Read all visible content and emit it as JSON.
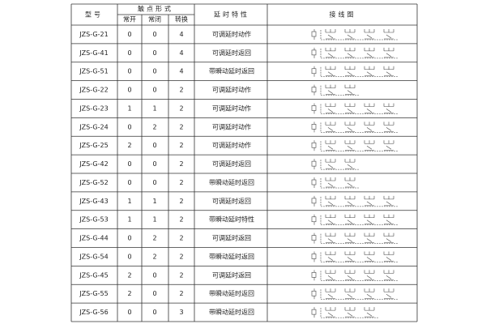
{
  "table": {
    "header": {
      "model": "型号",
      "contact": "触点形式",
      "no": "常开",
      "nc": "常闭",
      "co": "转换",
      "delay": "延时特性",
      "wiring": "接线图"
    },
    "rows": [
      [
        "JZS-G-21",
        0,
        0,
        4,
        "可调延时动作"
      ],
      [
        "JZS-G-41",
        0,
        0,
        4,
        "可调延时返回"
      ],
      [
        "JZS-G-51",
        0,
        0,
        4,
        "带瞬动延时返回"
      ],
      [
        "JZS-G-22",
        0,
        0,
        2,
        "可调延时动作"
      ],
      [
        "JZS-G-23",
        1,
        1,
        2,
        "可调延时动作"
      ],
      [
        "JZS-G-24",
        0,
        2,
        2,
        "可调延时动作"
      ],
      [
        "JZS-G-25",
        2,
        0,
        2,
        "可调延时动作"
      ],
      [
        "JZS-G-42",
        0,
        0,
        2,
        "可调延时返回"
      ],
      [
        "JZS-G-52",
        0,
        0,
        2,
        "带瞬动延时返回"
      ],
      [
        "JZS-G-43",
        1,
        1,
        2,
        "可调延时返回"
      ],
      [
        "JZS-G-53",
        1,
        1,
        2,
        "带瞬动延时特性"
      ],
      [
        "JZS-G-44",
        0,
        2,
        2,
        "可调延时返回"
      ],
      [
        "JZS-G-54",
        0,
        2,
        2,
        "带瞬动延时返回"
      ],
      [
        "JZS-G-45",
        2,
        0,
        2,
        "可调延时返回"
      ],
      [
        "JZS-G-55",
        2,
        0,
        2,
        "带瞬动延时返回"
      ],
      [
        "JZS-G-56",
        0,
        0,
        3,
        "带瞬动延时返回"
      ]
    ]
  }
}
